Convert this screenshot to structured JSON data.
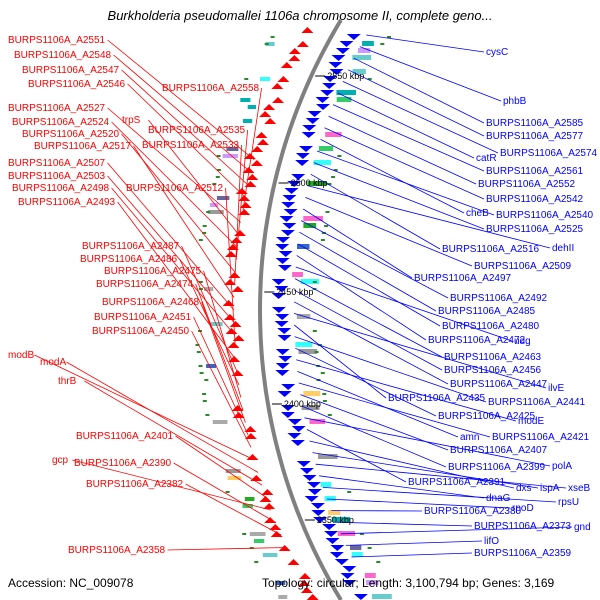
{
  "title": "Burkholderia pseudomallei 1106a chromosome II, complete geno...",
  "footer": {
    "accession": "Accession: NC_009078",
    "topology": "Topology: circular; Length: 3,100,794 bp; Genes: 3,169"
  },
  "colors": {
    "forward": "#ff0000",
    "reverse": "#0000ff",
    "backbone": "#808080",
    "tick": "#2a8a2a"
  },
  "scale_labels": [
    "2550 kbp",
    "2500 kbp",
    "2450 kbp",
    "2400 kbp",
    "2350 kbp"
  ],
  "left_labels": [
    "BURPS1106A_A2551",
    "BURPS1106A_A2548",
    "BURPS1106A_A2547",
    "BURPS1106A_A2546",
    "BURPS1106A_A2558",
    "BURPS1106A_A2527",
    "trpS",
    "BURPS1106A_A2524",
    "BURPS1106A_A2535",
    "BURPS1106A_A2520",
    "BURPS1106A_A2533",
    "BURPS1106A_A2517",
    "BURPS1106A_A2507",
    "BURPS1106A_A2503",
    "BURPS1106A_A2498",
    "BURPS1106A_A2512",
    "BURPS1106A_A2493",
    "BURPS1106A_A2487",
    "BURPS1106A_A2486",
    "BURPS1106A_A2475",
    "BURPS1106A_A2474",
    "BURPS1106A_A2468",
    "BURPS1106A_A2451",
    "BURPS1106A_A2450",
    "modB",
    "modA",
    "thrB",
    "BURPS1106A_A2401",
    "gcp",
    "BURPS1106A_A2390",
    "BURPS1106A_A2382",
    "BURPS1106A_A2358"
  ],
  "right_labels": [
    "cysC",
    "phbB",
    "BURPS1106A_A2585",
    "BURPS1106A_A2577",
    "BURPS1106A_A2574",
    "catR",
    "BURPS1106A_A2561",
    "BURPS1106A_A2552",
    "BURPS1106A_A2542",
    "cheB",
    "BURPS1106A_A2540",
    "BURPS1106A_A2525",
    "BURPS1106A_A2516",
    "dehII",
    "BURPS1106A_A2509",
    "BURPS1106A_A2497",
    "BURPS1106A_A2492",
    "BURPS1106A_A2485",
    "BURPS1106A_A2480",
    "BURPS1106A_A2472",
    "udg",
    "BURPS1106A_A2463",
    "BURPS1106A_A2456",
    "BURPS1106A_A2447",
    "ilvE",
    "BURPS1106A_A2435",
    "BURPS1106A_A2441",
    "BURPS1106A_A2425",
    "modE",
    "amn",
    "BURPS1106A_A2421",
    "BURPS1106A_A2407",
    "BURPS1106A_A2399",
    "polA",
    "BURPS1106A_A2391",
    "dxs",
    "ispA",
    "xseB",
    "dnaG",
    "rpsU",
    "rpoD",
    "BURPS1106A_A2380",
    "BURPS1106A_A2373",
    "gnd",
    "lifO",
    "BURPS1106A_A2359"
  ]
}
